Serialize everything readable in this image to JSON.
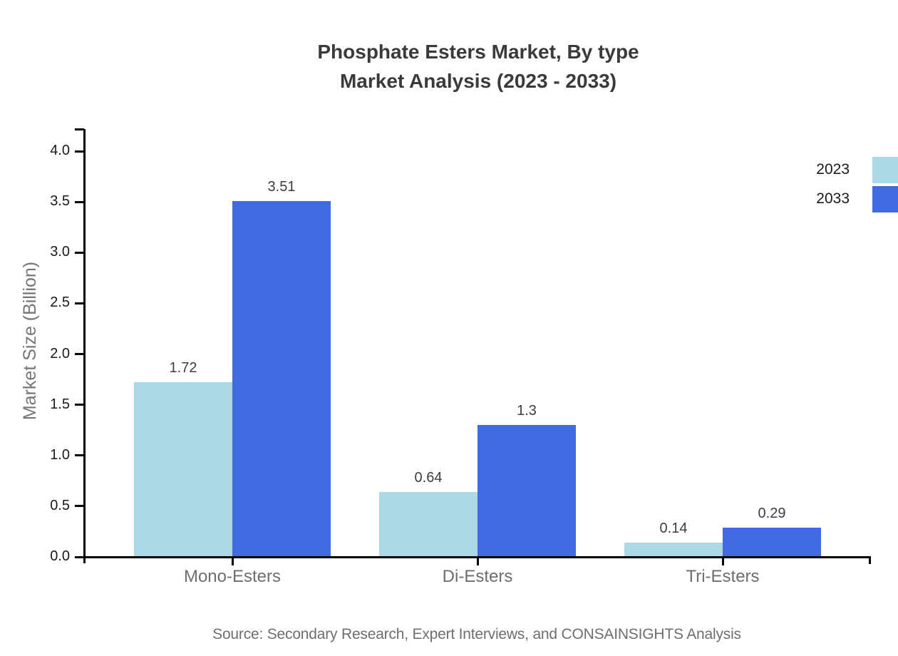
{
  "title": {
    "line1": "Phosphate Esters Market, By type",
    "line2": "Market Analysis (2023 - 2033)"
  },
  "source": "Source: Secondary Research, Expert Interviews, and CONSAINSIGHTS Analysis",
  "colors": {
    "series_2023": "#ADD8E6",
    "series_2033": "#4169E1",
    "axis": "#000000",
    "title_text": "#3A3A3A",
    "tick_label": "#1A1A1A",
    "category_label": "#6E6E6E",
    "value_label": "#3D3D3D",
    "axis_label": "#757575",
    "legend_text": "#1A1A1A",
    "source_text": "#6E6E6E",
    "background": "#FFFFFF"
  },
  "chart_data": {
    "type": "bar",
    "title": "Phosphate Esters Market, By type Market Analysis (2023 - 2033)",
    "categories": [
      "Mono-Esters",
      "Di-Esters",
      "Tri-Esters"
    ],
    "series": [
      {
        "name": "2023",
        "color": "#ADD8E6",
        "values": [
          1.72,
          0.64,
          0.14
        ],
        "labels": [
          "1.72",
          "0.64",
          "0.14"
        ]
      },
      {
        "name": "2033",
        "color": "#4169E1",
        "values": [
          3.51,
          1.3,
          0.29
        ],
        "labels": [
          "3.51",
          "1.3",
          "0.29"
        ]
      }
    ],
    "xlabel": "",
    "ylabel": "Market Size (Billion)",
    "ylim": [
      0,
      4.2
    ],
    "yticks": [
      0,
      0.5,
      1,
      1.5,
      2,
      2.5,
      3,
      3.5,
      4
    ],
    "ytick_labels": [
      "0.0",
      "0.5",
      "1.0",
      "1.5",
      "2.0",
      "2.5",
      "3.0",
      "3.5",
      "4.0"
    ],
    "grid": false,
    "legend_position": "right",
    "value_labels_shown": true
  }
}
